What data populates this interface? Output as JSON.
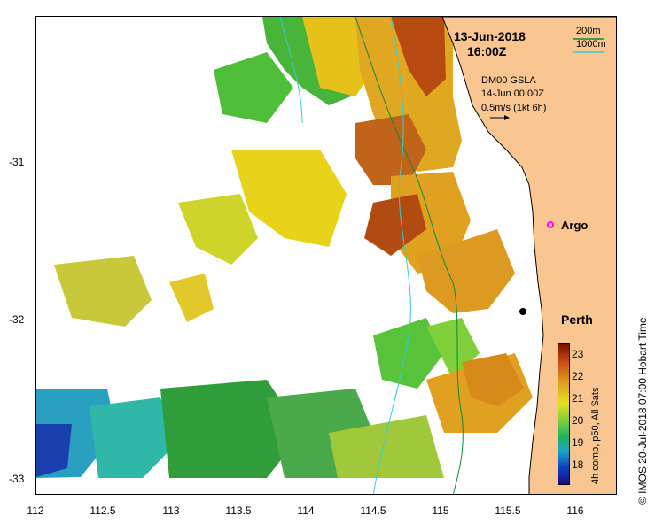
{
  "map": {
    "date": "13-Jun-2018",
    "time": "16:00Z",
    "contours": [
      "200m",
      "1000m"
    ],
    "gsla": {
      "title": "DM00 GSLA",
      "time": "14-Jun 00:00Z",
      "scale": "0.5m/s (1kt 6h)"
    },
    "places": {
      "argo": "Argo",
      "perth": "Perth"
    },
    "credit": "© IMOS 20-Jul-2018 07:00 Hobart Time",
    "colorbar": {
      "label": "4h comp, p50, All Sats",
      "ticks": [
        "23",
        "22",
        "21",
        "20",
        "19",
        "18"
      ]
    },
    "x_axis": {
      "ticks": [
        "112",
        "112.5",
        "113",
        "113.5",
        "114",
        "114.5",
        "115",
        "115.5",
        "116"
      ]
    },
    "y_axis": {
      "ticks": [
        "-31",
        "-32",
        "-33"
      ]
    },
    "colors": {
      "land": "#F9C590",
      "contour_200": "#0b8a3a",
      "contour_1000": "#2fd0d0",
      "argo": "#ff00ff"
    }
  }
}
